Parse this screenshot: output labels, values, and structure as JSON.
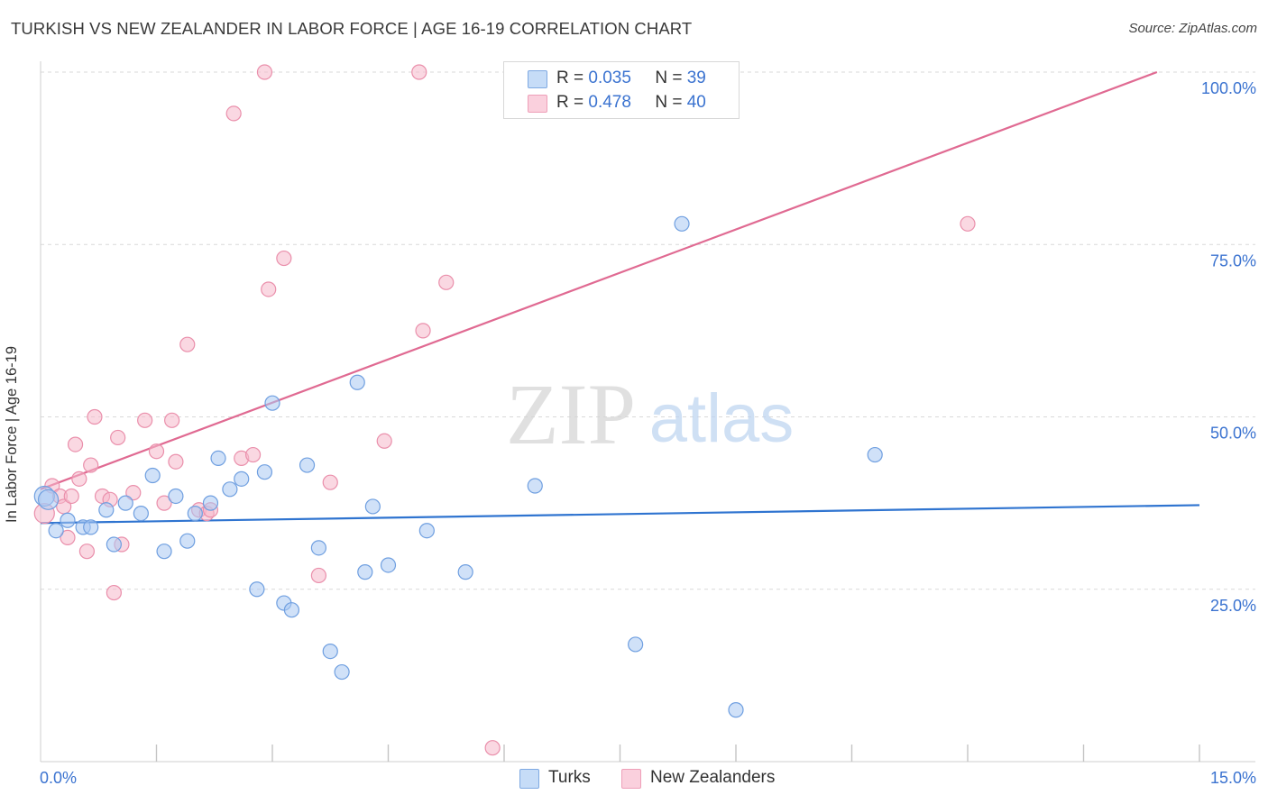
{
  "title": "TURKISH VS NEW ZEALANDER IN LABOR FORCE | AGE 16-19 CORRELATION CHART",
  "source": "Source: ZipAtlas.com",
  "watermark": {
    "zip": "ZIP",
    "atlas": "atlas"
  },
  "legend": {
    "rows": [
      {
        "r_label": "R =",
        "r_value": "0.035",
        "n_label": "N =",
        "n_value": "39",
        "color": "#a9c8f2"
      },
      {
        "r_label": "R =",
        "r_value": "0.478",
        "n_label": "N =",
        "n_value": "40",
        "color": "#f6b8ca"
      }
    ]
  },
  "bottom_legend": {
    "turks": "Turks",
    "nz": "New Zealanders"
  },
  "colors": {
    "turks_fill": "#a9c8f2",
    "turks_stroke": "#6f9fe0",
    "turks_line": "#2f74d0",
    "nz_fill": "#f6b8ca",
    "nz_stroke": "#ea8fab",
    "nz_line": "#e06a92",
    "axis_label": "#3b73d0",
    "grid": "#d9d9d9"
  },
  "chart_data": {
    "type": "scatter",
    "title": "TURKISH VS NEW ZEALANDER IN LABOR FORCE | AGE 16-19 CORRELATION CHART",
    "ylabel": "In Labor Force | Age 16-19",
    "xlabel": "",
    "xlim": [
      0,
      15
    ],
    "ylim": [
      0,
      100
    ],
    "x_tick_labels": [
      "0.0%",
      "15.0%"
    ],
    "y_tick_labels": [
      "100.0%",
      "75.0%",
      "50.0%",
      "25.0%"
    ],
    "y_ticks": [
      100,
      75,
      50,
      25
    ],
    "series": [
      {
        "name": "Turks",
        "points": [
          [
            0.05,
            38.5
          ],
          [
            0.2,
            33.5
          ],
          [
            0.35,
            35
          ],
          [
            0.55,
            34
          ],
          [
            0.65,
            34
          ],
          [
            0.85,
            36.5
          ],
          [
            0.95,
            31.5
          ],
          [
            1.1,
            37.5
          ],
          [
            1.3,
            36
          ],
          [
            1.45,
            41.5
          ],
          [
            1.6,
            30.5
          ],
          [
            1.75,
            38.5
          ],
          [
            1.9,
            32
          ],
          [
            2.0,
            36
          ],
          [
            2.2,
            37.5
          ],
          [
            2.3,
            44
          ],
          [
            2.45,
            39.5
          ],
          [
            2.6,
            41
          ],
          [
            2.8,
            25
          ],
          [
            2.9,
            42
          ],
          [
            3.0,
            52
          ],
          [
            3.15,
            23
          ],
          [
            3.25,
            22
          ],
          [
            3.45,
            43
          ],
          [
            3.6,
            31
          ],
          [
            3.75,
            16
          ],
          [
            3.9,
            13
          ],
          [
            4.1,
            55
          ],
          [
            4.2,
            27.5
          ],
          [
            4.3,
            37
          ],
          [
            4.5,
            28.5
          ],
          [
            5.0,
            33.5
          ],
          [
            5.5,
            27.5
          ],
          [
            6.4,
            40
          ],
          [
            7.7,
            17
          ],
          [
            8.3,
            78
          ],
          [
            9.0,
            7.5
          ],
          [
            10.8,
            44.5
          ],
          [
            0.1,
            38
          ]
        ]
      },
      {
        "name": "New Zealanders",
        "points": [
          [
            0.05,
            36
          ],
          [
            0.15,
            40
          ],
          [
            0.25,
            38.5
          ],
          [
            0.3,
            37
          ],
          [
            0.35,
            32.5
          ],
          [
            0.45,
            46
          ],
          [
            0.5,
            41
          ],
          [
            0.6,
            30.5
          ],
          [
            0.65,
            43
          ],
          [
            0.7,
            50
          ],
          [
            0.8,
            38.5
          ],
          [
            0.9,
            38
          ],
          [
            0.95,
            24.5
          ],
          [
            1.0,
            47
          ],
          [
            1.05,
            31.5
          ],
          [
            1.2,
            39
          ],
          [
            1.35,
            49.5
          ],
          [
            1.5,
            45
          ],
          [
            1.6,
            37.5
          ],
          [
            1.7,
            49.5
          ],
          [
            1.75,
            43.5
          ],
          [
            1.9,
            60.5
          ],
          [
            2.05,
            36.5
          ],
          [
            2.15,
            36
          ],
          [
            2.5,
            94
          ],
          [
            2.6,
            44
          ],
          [
            2.75,
            44.5
          ],
          [
            2.9,
            100
          ],
          [
            2.95,
            68.5
          ],
          [
            3.15,
            73
          ],
          [
            3.6,
            27
          ],
          [
            3.75,
            40.5
          ],
          [
            4.45,
            46.5
          ],
          [
            4.9,
            100
          ],
          [
            4.95,
            62.5
          ],
          [
            5.25,
            69.5
          ],
          [
            5.85,
            2
          ],
          [
            12.0,
            78
          ],
          [
            2.2,
            36.5
          ],
          [
            0.4,
            38.5
          ]
        ]
      }
    ],
    "trend_lines": [
      {
        "name": "Turks",
        "x": [
          0,
          15
        ],
        "y": [
          34.6,
          37.2
        ]
      },
      {
        "name": "New Zealanders",
        "x": [
          0,
          14.45
        ],
        "y": [
          39.5,
          100
        ]
      }
    ]
  }
}
